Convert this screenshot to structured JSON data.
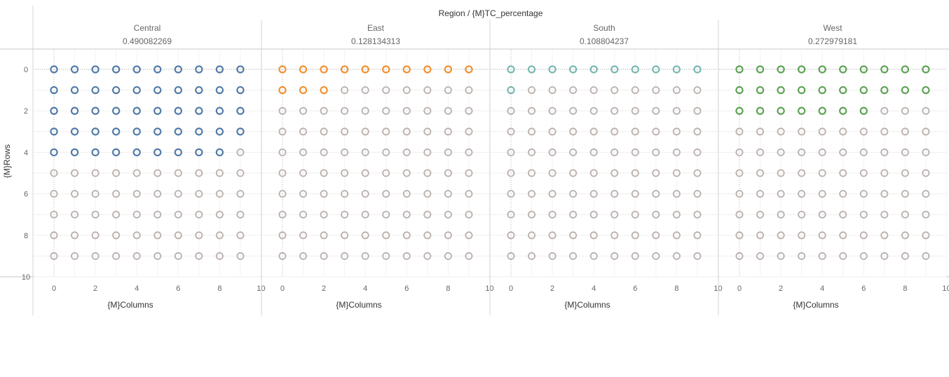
{
  "chart_data": {
    "type": "scatter",
    "title": "Region / {M}TC_percentage",
    "xlabel": "{M}Columns",
    "ylabel": "{M}Rows",
    "xlim": [
      -1,
      10
    ],
    "ylim": [
      10,
      -1
    ],
    "x_ticks": [
      0,
      2,
      4,
      6,
      8,
      10
    ],
    "y_ticks": [
      0,
      2,
      4,
      6,
      8,
      10
    ],
    "grid": true,
    "description": "10x10 waffle grid per region; first N cells (row-major) highlighted, rest grey",
    "panels": [
      {
        "region": "Central",
        "tc_percentage": "0.490082269",
        "highlighted_cells": 49,
        "color": "#4e79a7"
      },
      {
        "region": "East",
        "tc_percentage": "0.128134313",
        "highlighted_cells": 13,
        "color": "#f28e2b"
      },
      {
        "region": "South",
        "tc_percentage": "0.108804237",
        "highlighted_cells": 11,
        "color": "#76b7b2"
      },
      {
        "region": "West",
        "tc_percentage": "0.272979181",
        "highlighted_cells": 27,
        "color": "#59a14f"
      }
    ],
    "inactive_color": "#bab0ac"
  }
}
